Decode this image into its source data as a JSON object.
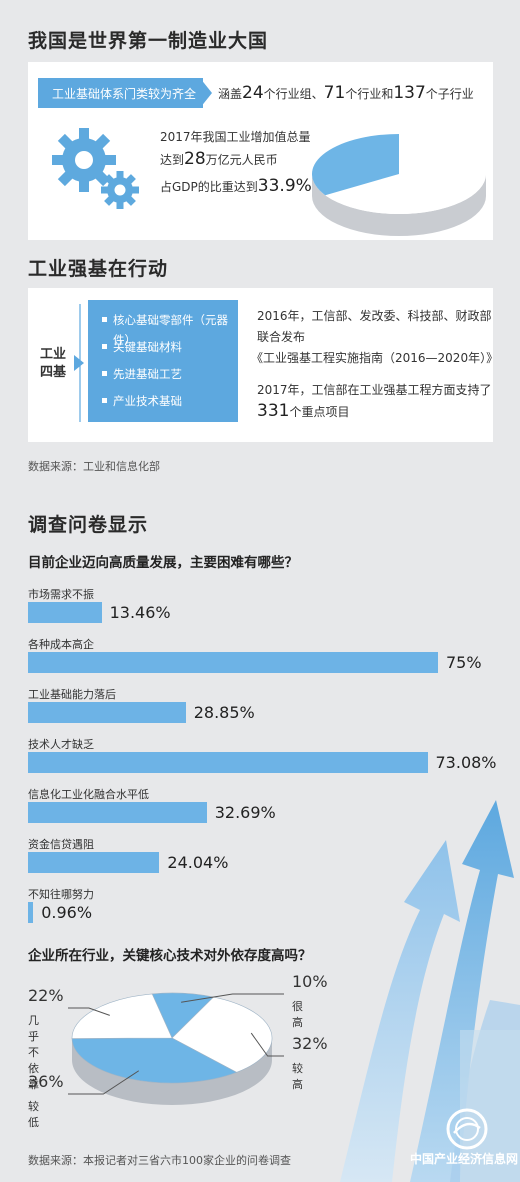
{
  "section1": {
    "title": "我国是世界第一制造业大国",
    "highlight_label": "工业基础体系门类较为齐全",
    "highlight_prefix": "涵盖",
    "groups_num": "24",
    "groups_unit": "个行业组、",
    "classes_num": "71",
    "classes_unit": "个行业和",
    "sub_num": "137",
    "sub_unit": "个子行业",
    "line1": "2017年我国工业增加值总量",
    "line2_prefix": "达到",
    "line2_num": "28",
    "line2_suffix": "万亿元人民币",
    "line3_prefix": "占GDP的比重达到",
    "line3_num": "33.9%",
    "gdp_share": 33.9,
    "icon": "gears-icon"
  },
  "section2": {
    "title": "工业强基在行动",
    "label_line1": "工业",
    "label_line2": "四基",
    "items": [
      "核心基础零部件（元器件）",
      "关键基础材料",
      "先进基础工艺",
      "产业技术基础"
    ],
    "text1_line1": "2016年，工信部、发改委、科技部、财政部",
    "text1_line2": "联合发布",
    "text1_line3": "《工业强基工程实施指南（2016—2020年）》",
    "text2_line1": "2017年，工信部在工业强基工程方面支持了",
    "text2_num": "331",
    "text2_suffix": "个重点项目",
    "source": "数据来源：工业和信息化部"
  },
  "section3": {
    "title": "调查问卷显示",
    "q1": "目前企业迈向高质量发展，主要困难有哪些？",
    "q2": "企业所在行业，关键核心技术对外依存度高吗？",
    "source": "数据来源：本报记者对三省六市100家企业的问卷调查",
    "watermark": "中国产业经济信息网"
  },
  "colors": {
    "accent": "#5da8df",
    "bar": "#6db3e6",
    "pie_dark": "#6eb5e6",
    "pie_light": "#ffffff",
    "background": "#e7e8ea"
  },
  "chart_data": [
    {
      "type": "bar",
      "orientation": "horizontal",
      "title": "目前企业迈向高质量发展，主要困难有哪些？",
      "categories": [
        "市场需求不振",
        "各种成本高企",
        "工业基础能力落后",
        "技术人才缺乏",
        "信息化工业化融合水平低",
        "资金信贷遇阻",
        "不知往哪努力"
      ],
      "values": [
        13.46,
        75,
        28.85,
        73.08,
        32.69,
        24.04,
        0.96
      ],
      "labels": [
        "13.46%",
        "75%",
        "28.85%",
        "73.08%",
        "32.69%",
        "24.04%",
        "0.96%"
      ],
      "unit": "%"
    },
    {
      "type": "pie",
      "title": "企业所在行业，关键核心技术对外依存度高吗？",
      "categories": [
        "很高",
        "较高",
        "较低",
        "几乎不依靠"
      ],
      "values": [
        10,
        32,
        36,
        22
      ],
      "labels": [
        "10%",
        "32%",
        "36%",
        "22%"
      ],
      "unit": "%"
    }
  ]
}
